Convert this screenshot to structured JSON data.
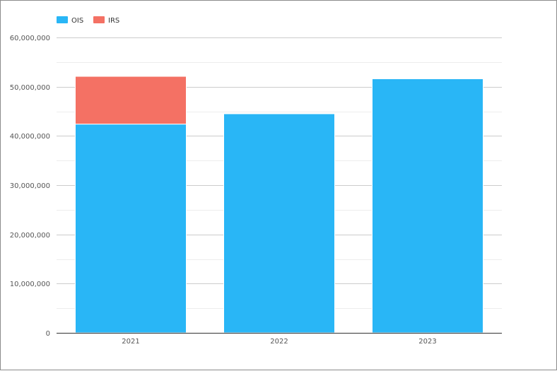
{
  "chart_data": {
    "type": "bar",
    "stacked": true,
    "categories": [
      "2021",
      "2022",
      "2023"
    ],
    "series": [
      {
        "name": "OIS",
        "color": "#29b6f6",
        "values": [
          42400000,
          44500000,
          51600000
        ]
      },
      {
        "name": "IRS",
        "color": "#f47164",
        "values": [
          9700000,
          0,
          0
        ]
      }
    ],
    "ylim": [
      0,
      60000000
    ],
    "y_ticks": [
      0,
      10000000,
      20000000,
      30000000,
      40000000,
      50000000,
      60000000
    ],
    "y_tick_labels": [
      "0",
      "10,000,000",
      "20,000,000",
      "30,000,000",
      "40,000,000",
      "50,000,000",
      "60,000,000"
    ],
    "title": "",
    "xlabel": "",
    "ylabel": "",
    "grid": true,
    "minor_grid": true,
    "legend_position": "top-left"
  }
}
